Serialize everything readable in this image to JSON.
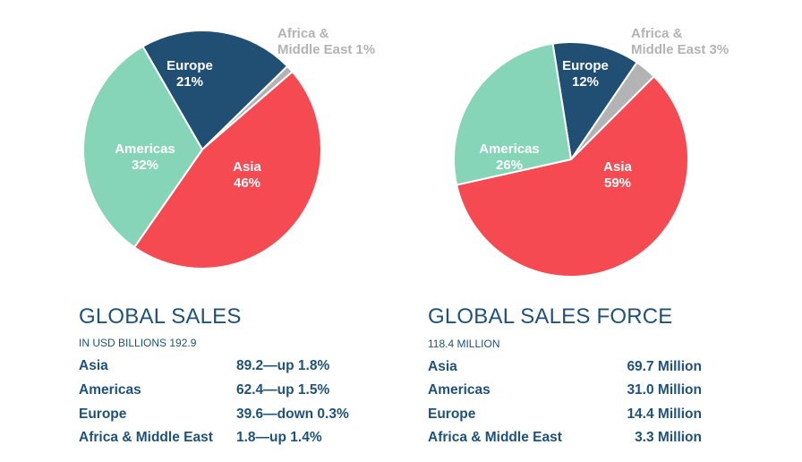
{
  "chart_data": [
    {
      "type": "pie",
      "slices": [
        {
          "label_lines": [
            "Europe",
            "21%"
          ],
          "value": 21,
          "color": "#214f73",
          "text_color": "#ffffff"
        },
        {
          "label_lines": [
            "Africa &",
            "Middle East 1%"
          ],
          "value": 1,
          "color": "#b3b3b3",
          "text_color": "#b3b3b3"
        },
        {
          "label_lines": [
            "Asia",
            "46%"
          ],
          "value": 46,
          "color": "#f64a52",
          "text_color": "#ffffff"
        },
        {
          "label_lines": [
            "Americas",
            "32%"
          ],
          "value": 32,
          "color": "#87d5b8",
          "text_color": "#ffffff"
        }
      ]
    },
    {
      "type": "pie",
      "slices": [
        {
          "label_lines": [
            "Europe",
            "12%"
          ],
          "value": 12,
          "color": "#214f73",
          "text_color": "#ffffff"
        },
        {
          "label_lines": [
            "Africa &",
            "Middle East 3%"
          ],
          "value": 3,
          "color": "#b3b3b3",
          "text_color": "#b3b3b3"
        },
        {
          "label_lines": [
            "Asia",
            "59%"
          ],
          "value": 59,
          "color": "#f64a52",
          "text_color": "#ffffff"
        },
        {
          "label_lines": [
            "Americas",
            "26%"
          ],
          "value": 26,
          "color": "#87d5b8",
          "text_color": "#ffffff"
        }
      ]
    }
  ],
  "left_block": {
    "title": "GLOBAL SALES",
    "subtitle": "IN USD BILLIONS 192.9",
    "rows": [
      {
        "name": "Asia",
        "value": "89.2—up 1.8%"
      },
      {
        "name": "Americas",
        "value": "62.4—up 1.5%"
      },
      {
        "name": "Europe",
        "value": "39.6—down 0.3%"
      },
      {
        "name": "Africa & Middle East",
        "value": "1.8—up 1.4%"
      }
    ]
  },
  "right_block": {
    "title": "GLOBAL SALES FORCE",
    "subtitle": "118.4 MILLION",
    "rows": [
      {
        "name": "Asia",
        "value": "69.7 Million"
      },
      {
        "name": "Americas",
        "value": "31.0 Million"
      },
      {
        "name": "Europe",
        "value": "14.4 Million"
      },
      {
        "name": "Africa & Middle East",
        "value": "3.3 Million"
      }
    ]
  }
}
